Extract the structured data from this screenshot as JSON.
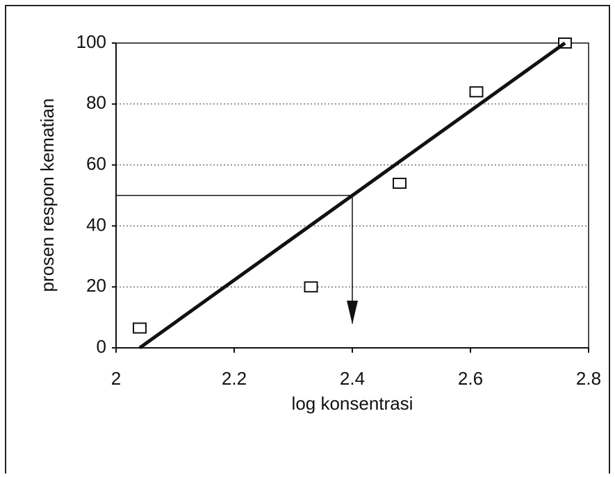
{
  "chart_data": {
    "type": "scatter",
    "x_label": "log konsentrasi",
    "y_label": "prosen respon kematian",
    "series": [
      {
        "x": [
          2.04,
          2.33,
          2.48,
          2.61,
          2.76
        ],
        "values": [
          6.5,
          20,
          54,
          84,
          100
        ],
        "color": "#111111"
      }
    ],
    "trendline": {
      "x": [
        2.04,
        2.76
      ],
      "y": [
        0,
        100
      ],
      "color": "#111111"
    },
    "annotation_arrow": {
      "x": 2.4,
      "y": 50
    },
    "xlim": [
      2,
      2.8
    ],
    "xticks": [
      2,
      2.2,
      2.4,
      2.6,
      2.8
    ],
    "ylim": [
      0,
      100
    ],
    "yticks": [
      0,
      20,
      40,
      60,
      80,
      100
    ],
    "grid": true
  }
}
